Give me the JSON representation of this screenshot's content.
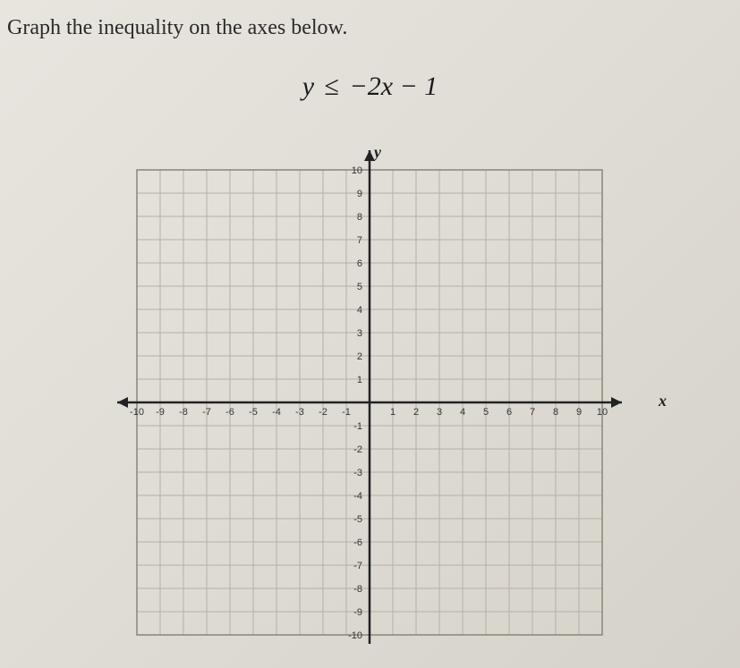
{
  "problem": {
    "instruction": "Graph the inequality on the axes below.",
    "equation": {
      "lhs_var": "y",
      "operator": "≤",
      "rhs": "−2x − 1"
    }
  },
  "axes": {
    "x_label": "x",
    "y_label": "y"
  },
  "graph": {
    "type": "coordinate-grid",
    "xlim": [
      -10,
      10
    ],
    "ylim": [
      -10,
      10
    ],
    "tick_step": 1,
    "grid_color": "#b5b0a6",
    "border_color": "#8a8578",
    "axis_color": "#222222",
    "background_color": "transparent",
    "tick_fontsize": 11,
    "x_ticks": [
      "-10",
      "-9",
      "-8",
      "-7",
      "-6",
      "-5",
      "-4",
      "-3",
      "-2",
      "-1",
      "",
      "1",
      "2",
      "3",
      "4",
      "5",
      "6",
      "7",
      "8",
      "9",
      "10"
    ],
    "y_ticks_pos": [
      "1",
      "2",
      "3",
      "4",
      "5",
      "6",
      "7",
      "8",
      "9",
      "10"
    ],
    "y_ticks_neg": [
      "-1",
      "-2",
      "-3",
      "-4",
      "-5",
      "-6",
      "-7",
      "-8",
      "-9",
      "-10"
    ]
  }
}
